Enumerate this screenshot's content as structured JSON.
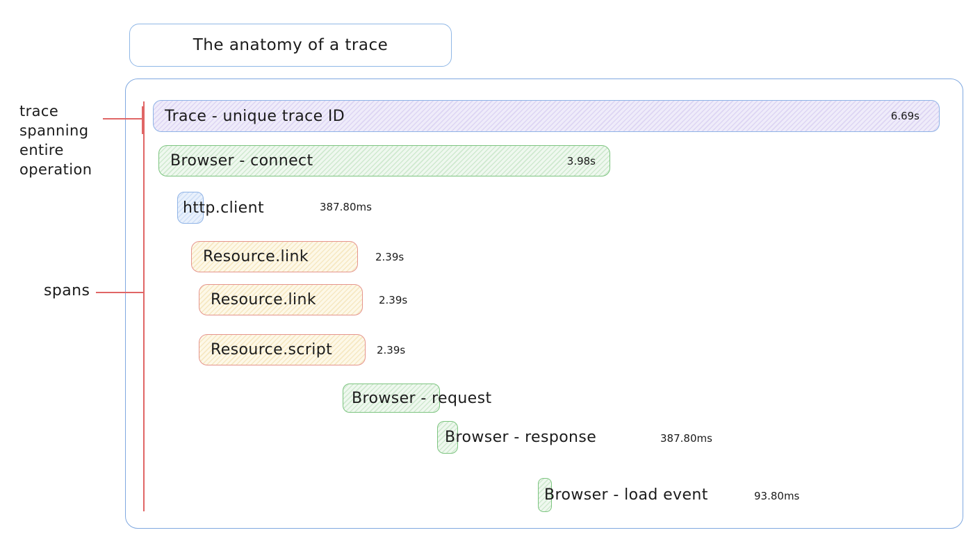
{
  "title": "The anatomy of a trace",
  "annotations": {
    "trace_label_lines": [
      "trace",
      "spanning",
      "entire",
      "operation"
    ],
    "spans_label": "spans"
  },
  "spans": [
    {
      "name": "trace",
      "label": "Trace - unique trace ID",
      "duration": "6.69s",
      "color": "purple"
    },
    {
      "name": "browser-connect",
      "label": "Browser - connect",
      "duration": "3.98s",
      "color": "green"
    },
    {
      "name": "http-client",
      "label": "http.client",
      "duration": "387.80ms",
      "color": "blue"
    },
    {
      "name": "resource-link-1",
      "label": "Resource.link",
      "duration": "2.39s",
      "color": "yellow"
    },
    {
      "name": "resource-link-2",
      "label": "Resource.link",
      "duration": "2.39s",
      "color": "yellow"
    },
    {
      "name": "resource-script",
      "label": "Resource.script",
      "duration": "2.39s",
      "color": "yellow"
    },
    {
      "name": "browser-request",
      "label": "Browser - request",
      "color": "green"
    },
    {
      "name": "browser-response",
      "label": "Browser - response",
      "duration": "387.80ms",
      "color": "green"
    },
    {
      "name": "browser-load-event",
      "label": "Browser - load event",
      "duration": "93.80ms",
      "color": "green"
    }
  ],
  "colors": {
    "blue_border": "#7fa8e0",
    "purple_fill": "#efecfa",
    "green_border": "#7cc47f",
    "green_fill": "#eff8ef",
    "yellow_fill": "#fdf8e8",
    "red_border": "#e5948c",
    "annotation_red": "#e06666",
    "text": "#1b1b1b"
  }
}
